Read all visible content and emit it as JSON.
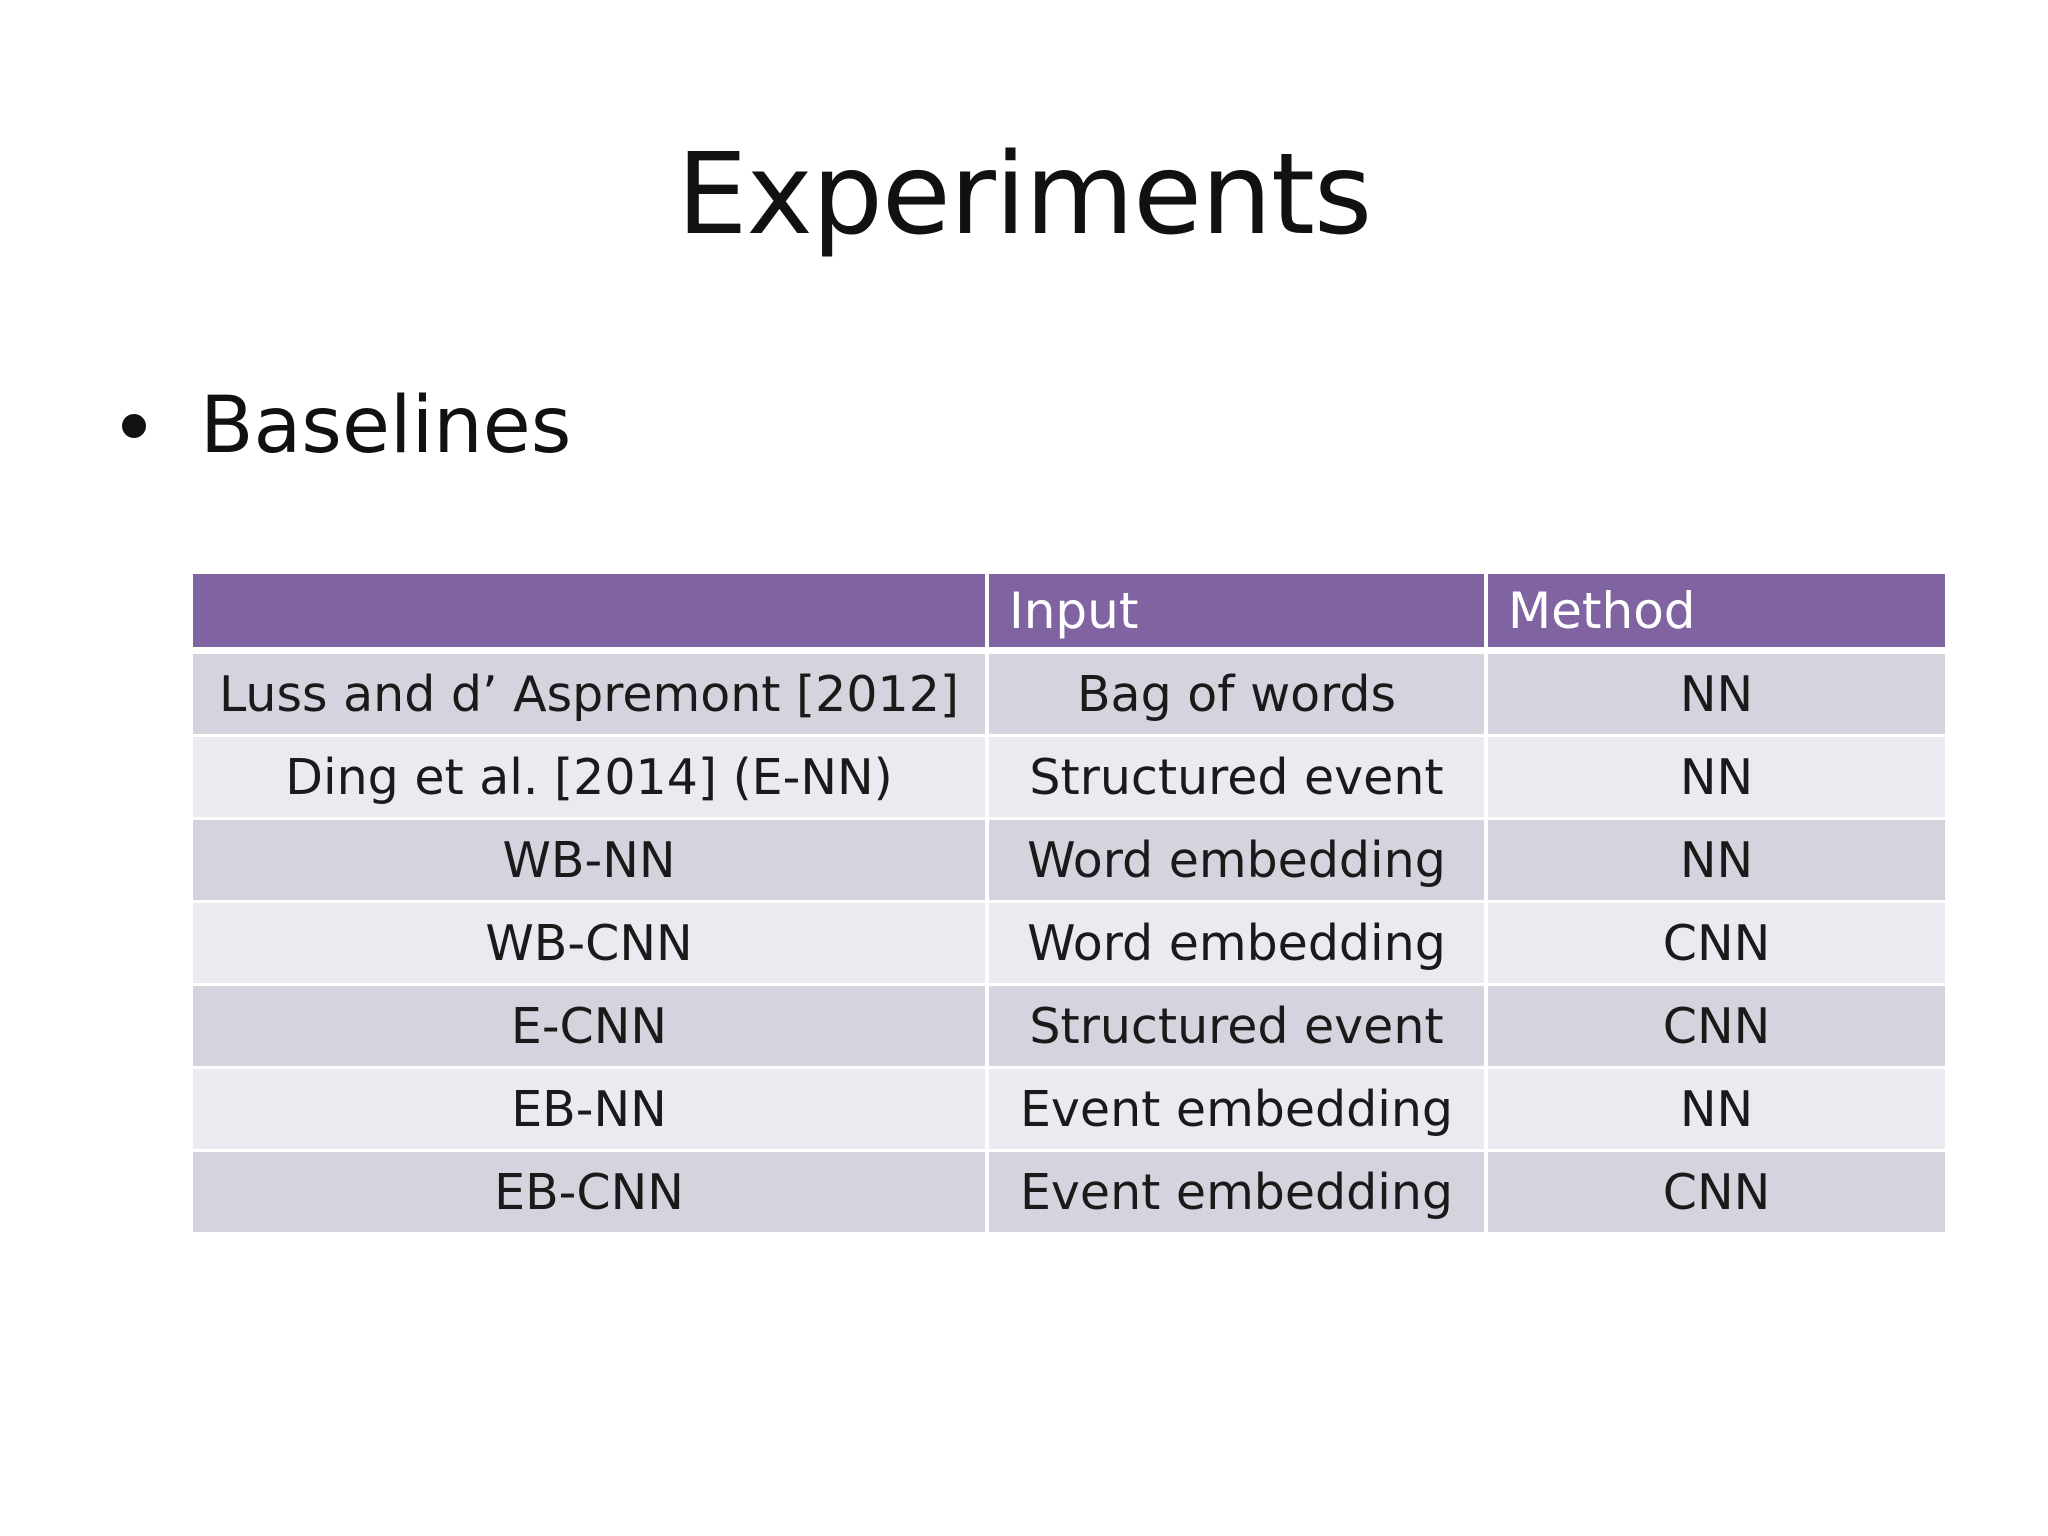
{
  "slide": {
    "title": "Experiments",
    "bullet": "Baselines"
  },
  "table": {
    "header": [
      "",
      "Input",
      "Method"
    ],
    "rows": [
      [
        "Luss and d’ Aspremont [2012]",
        "Bag of words",
        "NN"
      ],
      [
        "Ding et al. [2014]  (E-NN)",
        "Structured event",
        "NN"
      ],
      [
        "WB-NN",
        "Word embedding",
        "NN"
      ],
      [
        "WB-CNN",
        "Word embedding",
        "CNN"
      ],
      [
        "E-CNN",
        "Structured event",
        "CNN"
      ],
      [
        "EB-NN",
        "Event embedding",
        "NN"
      ],
      [
        "EB-CNN",
        "Event embedding",
        "CNN"
      ]
    ]
  },
  "colors": {
    "header_bg": "#8064a2",
    "row_dark": "#d6d3de",
    "row_light": "#eceaf0"
  }
}
